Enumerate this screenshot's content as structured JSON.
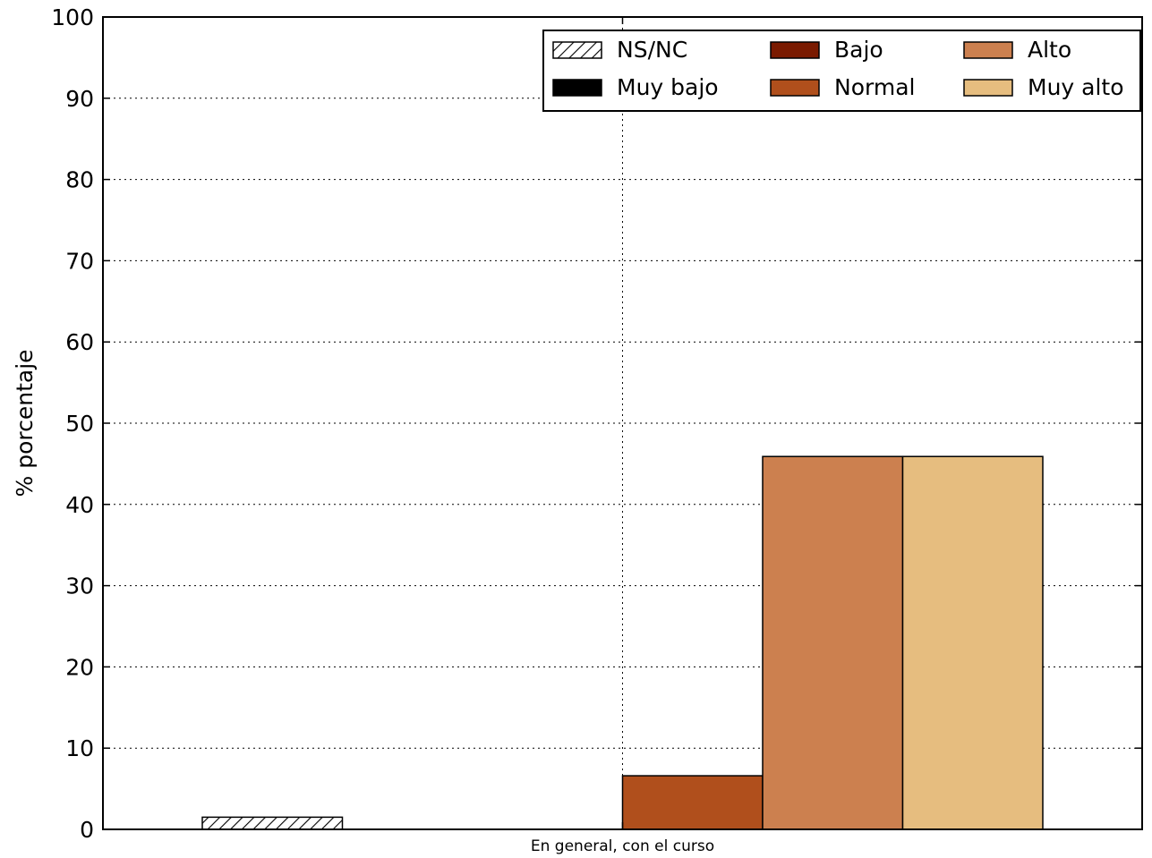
{
  "chart_data": {
    "type": "bar",
    "categories": [
      "En general, con el curso"
    ],
    "series": [
      {
        "name": "NS/NC",
        "values": [
          1.5
        ],
        "color": "#ffffff",
        "pattern": "hatch"
      },
      {
        "name": "Muy bajo",
        "values": [
          0
        ],
        "color": "#000000"
      },
      {
        "name": "Bajo",
        "values": [
          0
        ],
        "color": "#7a1a00"
      },
      {
        "name": "Normal",
        "values": [
          6.6
        ],
        "color": "#b04f1c"
      },
      {
        "name": "Alto",
        "values": [
          45.9
        ],
        "color": "#cc804f"
      },
      {
        "name": "Muy alto",
        "values": [
          45.9
        ],
        "color": "#e6bd7f"
      }
    ],
    "ylabel": "% porcentaje",
    "xlabel": "",
    "ylim": [
      0,
      100
    ],
    "yticks": [
      0,
      10,
      20,
      30,
      40,
      50,
      60,
      70,
      80,
      90,
      100
    ],
    "grid": true,
    "legend_position": "top-right"
  }
}
